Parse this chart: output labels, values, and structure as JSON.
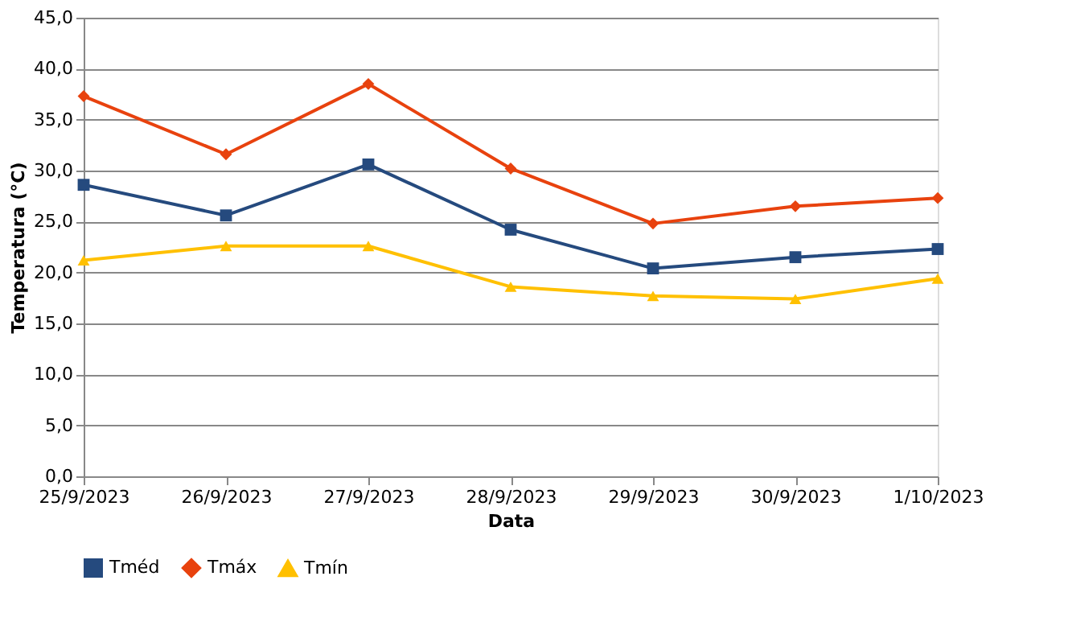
{
  "chart_data": {
    "type": "line",
    "xlabel": "Data",
    "ylabel": "Temperatura (°C)",
    "categories": [
      "25/9/2023",
      "26/9/2023",
      "27/9/2023",
      "28/9/2023",
      "29/9/2023",
      "30/9/2023",
      "1/10/2023"
    ],
    "series": [
      {
        "name": "Tméd",
        "color": "#254a7e",
        "marker": "square",
        "values": [
          28.6,
          25.6,
          30.6,
          24.2,
          20.4,
          21.5,
          22.3
        ]
      },
      {
        "name": "Tmáx",
        "color": "#e8420e",
        "marker": "diamond",
        "values": [
          37.3,
          31.6,
          38.5,
          30.2,
          24.8,
          26.5,
          27.3
        ]
      },
      {
        "name": "Tmín",
        "color": "#ffc000",
        "marker": "triangle",
        "values": [
          21.2,
          22.6,
          22.6,
          18.6,
          17.7,
          17.4,
          19.4
        ]
      }
    ],
    "ylim": [
      0,
      45
    ],
    "yticks": [
      {
        "value": 0,
        "label": "0,0"
      },
      {
        "value": 5,
        "label": "5,0"
      },
      {
        "value": 10,
        "label": "10,0"
      },
      {
        "value": 15,
        "label": "15,0"
      },
      {
        "value": 20,
        "label": "20,0"
      },
      {
        "value": 25,
        "label": "25,0"
      },
      {
        "value": 30,
        "label": "30,0"
      },
      {
        "value": 35,
        "label": "35,0"
      },
      {
        "value": 40,
        "label": "40,0"
      },
      {
        "value": 45,
        "label": "45,0"
      }
    ],
    "grid": "y",
    "legend": "bottom",
    "line_style": "solid"
  }
}
